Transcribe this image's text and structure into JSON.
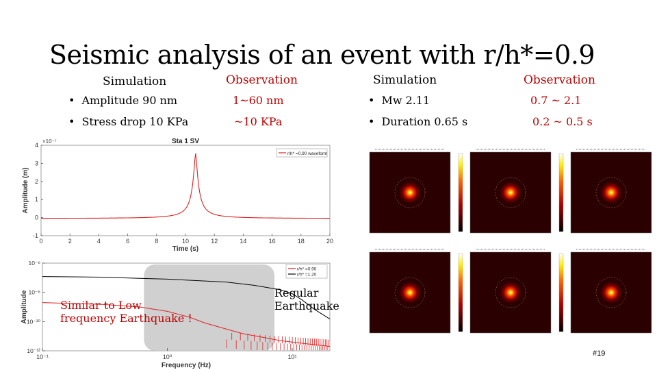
{
  "slide": {
    "title": "Seismic analysis of an event with r/h*=0.9",
    "left_headers": {
      "simulation": "Simulation",
      "observation": "Observation"
    },
    "right_headers": {
      "simulation": "Simulation",
      "observation": "Observation"
    },
    "rows_left": [
      {
        "label": "Amplitude 90 nm",
        "observed": "1~60 nm"
      },
      {
        "label": "Stress drop 10 KPa",
        "observed": "~10 KPa"
      }
    ],
    "rows_right": [
      {
        "label": "Mw 2.11",
        "observed": "0.7 ~ 2.1"
      },
      {
        "label": "Duration 0.65 s",
        "observed": "0.2 ~ 0.5 s"
      }
    ],
    "note_left": [
      "Similar to Low",
      "frequency Earthquake !"
    ],
    "note_right": [
      "Regular",
      "Earthquake"
    ],
    "slide_number": "#19",
    "colors": {
      "accent": "#c00000",
      "waveform": "#e02020",
      "spectrum_ref": "#000000",
      "highlight_box": "#c8c8c8"
    }
  },
  "chart_data": [
    {
      "type": "line",
      "title": "Sta 1 SV",
      "xlabel": "Time (s)",
      "ylabel": "Amplitude (m)",
      "y_multiplier_label": "×10⁻⁷",
      "xlim": [
        0,
        20
      ],
      "ylim": [
        -1,
        4
      ],
      "xticks": [
        0,
        2,
        4,
        6,
        8,
        10,
        12,
        14,
        16,
        18,
        20
      ],
      "yticks": [
        -1,
        0,
        1,
        2,
        3,
        4
      ],
      "legend_position": "top-right",
      "series": [
        {
          "name": "r/h* =0.90 waveform",
          "color": "#e02020",
          "peak_time": 10.7,
          "peak_value": 3.6,
          "baseline": -0.05
        }
      ]
    },
    {
      "type": "line",
      "xlabel": "Frequency (Hz)",
      "ylabel": "Amplitude",
      "x_scale": "log",
      "y_scale": "log",
      "xlim": [
        0.1,
        20
      ],
      "ylim": [
        1e-12,
        1e-06
      ],
      "xticks": [
        0.1,
        1,
        10
      ],
      "xtick_labels": [
        "10⁻¹",
        "10⁰",
        "10¹"
      ],
      "yticks": [
        1e-12,
        1e-10,
        1e-08,
        1e-06
      ],
      "ytick_labels": [
        "10⁻¹²",
        "10⁻¹⁰",
        "10⁻⁸",
        "10⁻⁶"
      ],
      "legend_position": "top-right",
      "series": [
        {
          "name": "r/h* =0.90",
          "color": "#e02020",
          "x": [
            0.1,
            0.3,
            0.6,
            1.0,
            1.5,
            2.0,
            3.0,
            4.0,
            6.0,
            8.0,
            10.0,
            13.0,
            16.0,
            20.0
          ],
          "y": [
            2e-09,
            1.5e-09,
            1e-09,
            5e-10,
            2e-10,
            8e-11,
            3e-11,
            1.5e-11,
            8e-12,
            5e-12,
            4e-12,
            3e-12,
            2.5e-12,
            2e-12
          ]
        },
        {
          "name": "r/h* =1.20",
          "color": "#000000",
          "x": [
            0.1,
            0.3,
            0.6,
            1.0,
            2.0,
            3.0,
            5.0,
            8.0,
            10.0,
            12.0,
            15.0,
            20.0
          ],
          "y": [
            1.2e-07,
            1.1e-07,
            9e-08,
            8e-08,
            6e-08,
            5e-08,
            3e-08,
            1.5e-08,
            8e-09,
            3e-09,
            7e-10,
            1.5e-10
          ]
        }
      ]
    },
    {
      "type": "heatmap",
      "panels": 6,
      "layout": "2x3 grid",
      "colormap": "black-red-yellow-white",
      "note": ""
    }
  ]
}
